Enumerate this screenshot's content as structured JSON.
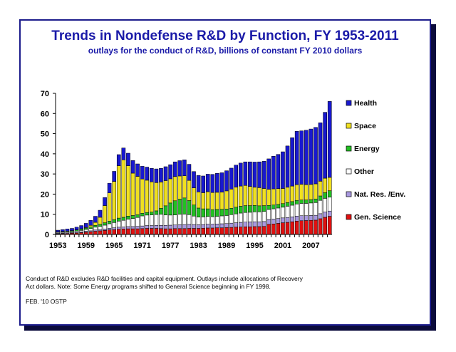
{
  "slide": {
    "title": "Trends in Nondefense R&D by Function, FY 1953-2011",
    "subtitle": "outlays for the conduct of R&D, billions of constant FY 2010 dollars",
    "footnote": "Conduct of R&D excludes R&D facilities and capital equipment. Outlays include allocations of Recovery Act dollars. Note: Some Energy programs shifted to General Science beginning in FY 1998.",
    "credit": "FEB. '10 OSTP"
  },
  "colors": {
    "title": "#1a1aa8",
    "frame": "#1c1c8c",
    "shadow": "#0b0b3b"
  },
  "chart_data": {
    "type": "bar",
    "stacked": true,
    "title": "Trends in Nondefense R&D by Function, FY 1953-2011",
    "subtitle": "outlays for the conduct of R&D, billions of constant FY 2010 dollars",
    "xlabel": "",
    "ylabel": "",
    "ylim": [
      0,
      70
    ],
    "yticks": [
      0,
      10,
      20,
      30,
      40,
      50,
      60,
      70
    ],
    "xtick_labels": [
      "1953",
      "1959",
      "1965",
      "1971",
      "1977",
      "1983",
      "1989",
      "1995",
      "2001",
      "2007"
    ],
    "grid": false,
    "legend_position": "right",
    "categories": [
      "1953",
      "1954",
      "1955",
      "1956",
      "1957",
      "1958",
      "1959",
      "1960",
      "1961",
      "1962",
      "1963",
      "1964",
      "1965",
      "1966",
      "1967",
      "1968",
      "1969",
      "1970",
      "1971",
      "1972",
      "1973",
      "1974",
      "1975",
      "1976",
      "1977",
      "1978",
      "1979",
      "1980",
      "1981",
      "1982",
      "1983",
      "1984",
      "1985",
      "1986",
      "1987",
      "1988",
      "1989",
      "1990",
      "1991",
      "1992",
      "1993",
      "1994",
      "1995",
      "1996",
      "1997",
      "1998",
      "1999",
      "2000",
      "2001",
      "2002",
      "2003",
      "2004",
      "2005",
      "2006",
      "2007",
      "2008",
      "2009",
      "2010",
      "2011"
    ],
    "series": [
      {
        "name": "Gen. Science",
        "color": "#e01010",
        "values": [
          0.3,
          0.4,
          0.5,
          0.6,
          0.7,
          0.9,
          1.1,
          1.3,
          1.6,
          1.8,
          2.0,
          2.3,
          2.4,
          2.6,
          2.7,
          2.8,
          2.8,
          2.8,
          2.9,
          3.0,
          3.0,
          3.0,
          2.9,
          2.8,
          2.8,
          2.9,
          2.9,
          2.9,
          3.0,
          3.0,
          3.0,
          3.1,
          3.2,
          3.2,
          3.3,
          3.3,
          3.4,
          3.5,
          3.6,
          3.7,
          3.8,
          3.8,
          3.9,
          3.9,
          4.0,
          5.0,
          5.2,
          5.5,
          5.8,
          6.0,
          6.3,
          6.6,
          6.8,
          6.9,
          7.0,
          7.1,
          7.8,
          8.5,
          9.0
        ]
      },
      {
        "name": "Nat. Res. /Env.",
        "color": "#a898e0",
        "values": [
          0.3,
          0.3,
          0.3,
          0.3,
          0.4,
          0.4,
          0.5,
          0.5,
          0.6,
          0.6,
          0.7,
          0.8,
          0.9,
          1.0,
          1.0,
          1.1,
          1.1,
          1.2,
          1.3,
          1.4,
          1.4,
          1.5,
          1.6,
          1.7,
          1.8,
          1.8,
          1.9,
          2.0,
          2.0,
          1.9,
          1.8,
          1.8,
          1.9,
          1.9,
          1.9,
          2.0,
          2.0,
          2.1,
          2.2,
          2.3,
          2.3,
          2.4,
          2.4,
          2.4,
          2.4,
          2.4,
          2.4,
          2.4,
          2.4,
          2.4,
          2.4,
          2.5,
          2.5,
          2.4,
          2.4,
          2.4,
          2.5,
          2.6,
          2.6
        ]
      },
      {
        "name": "Other",
        "color": "#ffffff",
        "values": [
          0.4,
          0.4,
          0.5,
          0.5,
          0.6,
          0.7,
          0.9,
          1.1,
          1.4,
          1.6,
          1.9,
          2.2,
          2.6,
          3.0,
          3.3,
          3.7,
          4.0,
          4.4,
          5.0,
          5.2,
          5.3,
          5.4,
          5.5,
          5.2,
          5.0,
          5.0,
          5.2,
          5.2,
          4.8,
          4.2,
          3.8,
          3.8,
          3.8,
          3.7,
          3.8,
          3.9,
          4.0,
          4.2,
          4.4,
          4.6,
          4.8,
          4.8,
          4.9,
          4.9,
          5.0,
          5.0,
          5.1,
          5.2,
          5.3,
          5.6,
          5.8,
          6.0,
          6.1,
          6.1,
          6.2,
          6.3,
          6.6,
          6.8,
          6.9
        ]
      },
      {
        "name": "Energy",
        "color": "#22c022",
        "values": [
          0.2,
          0.3,
          0.3,
          0.4,
          0.5,
          0.6,
          0.7,
          0.8,
          0.9,
          1.0,
          1.2,
          1.3,
          1.4,
          1.5,
          1.5,
          1.5,
          1.5,
          1.4,
          1.3,
          1.3,
          1.4,
          1.8,
          3.0,
          4.5,
          6.0,
          7.0,
          7.5,
          8.0,
          7.0,
          5.5,
          4.5,
          4.0,
          3.8,
          3.5,
          3.4,
          3.3,
          3.2,
          3.2,
          3.3,
          3.4,
          3.4,
          3.3,
          3.2,
          3.0,
          2.9,
          2.0,
          1.9,
          1.8,
          1.8,
          1.8,
          1.8,
          1.8,
          1.7,
          1.7,
          1.7,
          1.8,
          2.2,
          2.8,
          3.2
        ]
      },
      {
        "name": "Space",
        "color": "#f0e020",
        "values": [
          0.1,
          0.1,
          0.1,
          0.1,
          0.1,
          0.2,
          0.3,
          0.8,
          1.5,
          3.5,
          8.5,
          14.0,
          19.0,
          26.0,
          28.5,
          25.0,
          21.0,
          19.0,
          17.0,
          16.0,
          15.0,
          14.0,
          13.0,
          12.5,
          12.0,
          12.0,
          11.5,
          11.0,
          10.0,
          8.5,
          8.0,
          8.0,
          8.5,
          8.5,
          8.5,
          8.5,
          9.0,
          9.5,
          10.0,
          10.0,
          10.0,
          9.5,
          9.0,
          9.0,
          8.5,
          8.0,
          8.0,
          7.8,
          7.5,
          7.6,
          7.7,
          7.8,
          7.8,
          7.6,
          7.5,
          7.5,
          7.3,
          7.2,
          6.6
        ]
      },
      {
        "name": "Health",
        "color": "#1818d0",
        "values": [
          0.8,
          0.9,
          1.0,
          1.1,
          1.3,
          1.6,
          2.0,
          2.5,
          3.0,
          3.5,
          4.0,
          4.8,
          5.0,
          5.5,
          5.9,
          6.2,
          6.3,
          6.2,
          6.3,
          6.5,
          6.7,
          6.8,
          6.8,
          6.9,
          7.0,
          7.3,
          7.6,
          7.9,
          8.0,
          8.1,
          8.2,
          8.3,
          8.7,
          9.0,
          9.4,
          9.6,
          10.0,
          10.4,
          10.9,
          11.4,
          11.7,
          12.2,
          12.5,
          12.8,
          13.5,
          15.1,
          16.2,
          17.0,
          18.2,
          20.5,
          24.0,
          26.5,
          26.5,
          27.0,
          27.5,
          28.0,
          29.0,
          32.7,
          37.7
        ]
      }
    ]
  }
}
